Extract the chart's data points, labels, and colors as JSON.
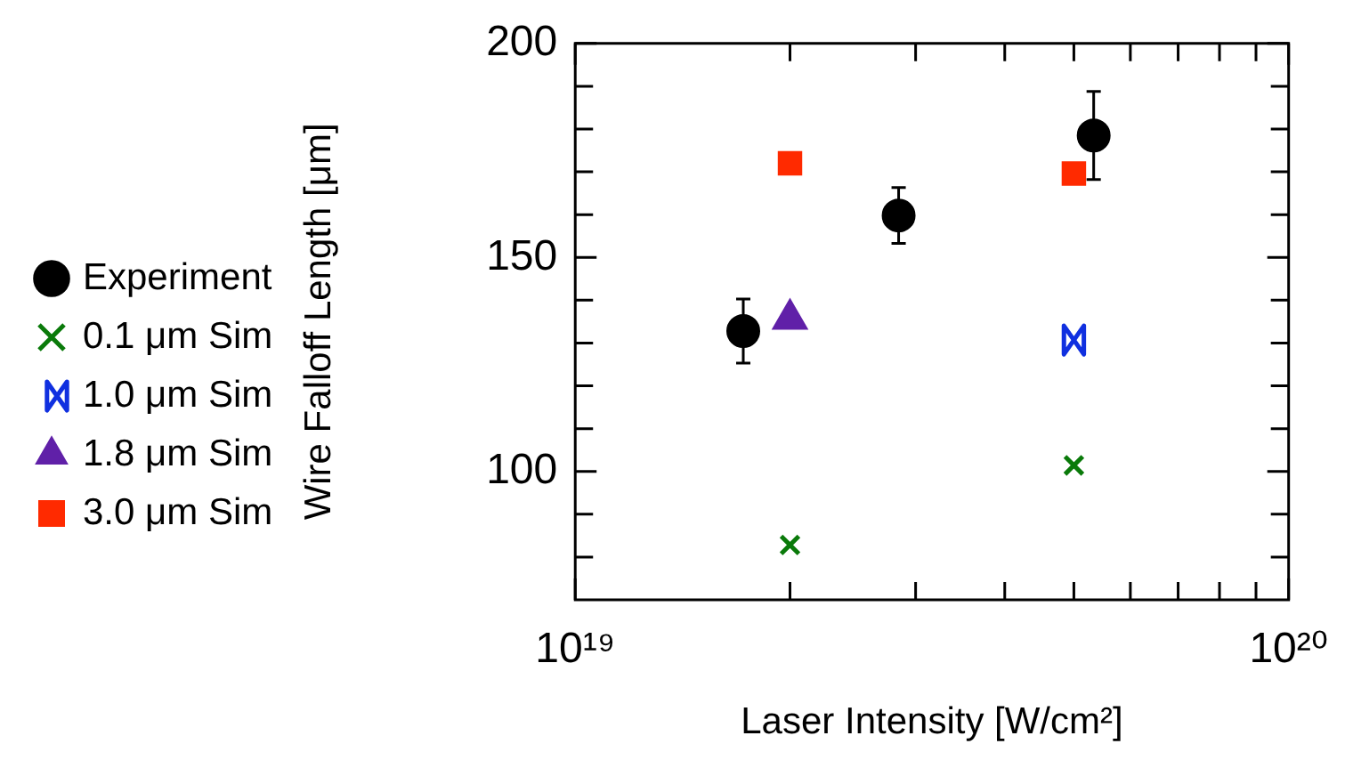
{
  "chart_data": {
    "type": "scatter",
    "xlabel": "Laser Intensity [W/cm²]",
    "ylabel": "Wire Falloff Length [μm]",
    "log": "x",
    "grid": false,
    "legend": "left",
    "xlim": [
      1e+19,
      1e+20
    ],
    "xticks": [
      {
        "value": 1e+19,
        "label": "10¹⁹"
      },
      {
        "value": 2e+19,
        "label": null
      },
      {
        "value": 3e+19,
        "label": null
      },
      {
        "value": 4e+19,
        "label": null
      },
      {
        "value": 5e+19,
        "label": null
      },
      {
        "value": 6e+19,
        "label": null
      },
      {
        "value": 7e+19,
        "label": null
      },
      {
        "value": 8e+19,
        "label": null
      },
      {
        "value": 9e+19,
        "label": null
      },
      {
        "value": 1e+20,
        "label": "10²⁰"
      }
    ],
    "ylim": [
      70,
      200
    ],
    "yticks": [
      {
        "value": 80,
        "label": null
      },
      {
        "value": 90,
        "label": null
      },
      100,
      {
        "value": 110,
        "label": null
      },
      {
        "value": 120,
        "label": null
      },
      {
        "value": 130,
        "label": null
      },
      {
        "value": 140,
        "label": null
      },
      150,
      {
        "value": 160,
        "label": null
      },
      {
        "value": 170,
        "label": null
      },
      {
        "value": 180,
        "label": null
      },
      {
        "value": 190,
        "label": null
      },
      200
    ],
    "series": [
      {
        "name": "Experiment",
        "color": "#000000",
        "marker": "circle",
        "x": [
          1.72e+19,
          2.84e+19,
          5.33e+19
        ],
        "values": [
          132.8,
          159.8,
          178.5
        ],
        "errors": [
          7.5,
          6.5,
          10.3
        ]
      },
      {
        "name": "0.1 μm Sim",
        "color": "#0a7a0a",
        "marker": "cross",
        "x": [
          2e+19,
          5e+19
        ],
        "values": [
          82.8,
          101.4
        ]
      },
      {
        "name": "1.0 μm Sim",
        "color": "#1030e0",
        "x": [
          5e+19
        ],
        "values": [
          130.7
        ]
      },
      {
        "name": "1.8 μm Sim",
        "color": "#6020a8",
        "marker": "triangle",
        "x": [
          2e+19
        ],
        "values": [
          135.6
        ]
      },
      {
        "name": "3.0 μm Sim",
        "color": "#ff2a00",
        "marker": "square",
        "x": [
          2e+19,
          5e+19
        ],
        "values": [
          172.0,
          169.6
        ]
      }
    ]
  }
}
